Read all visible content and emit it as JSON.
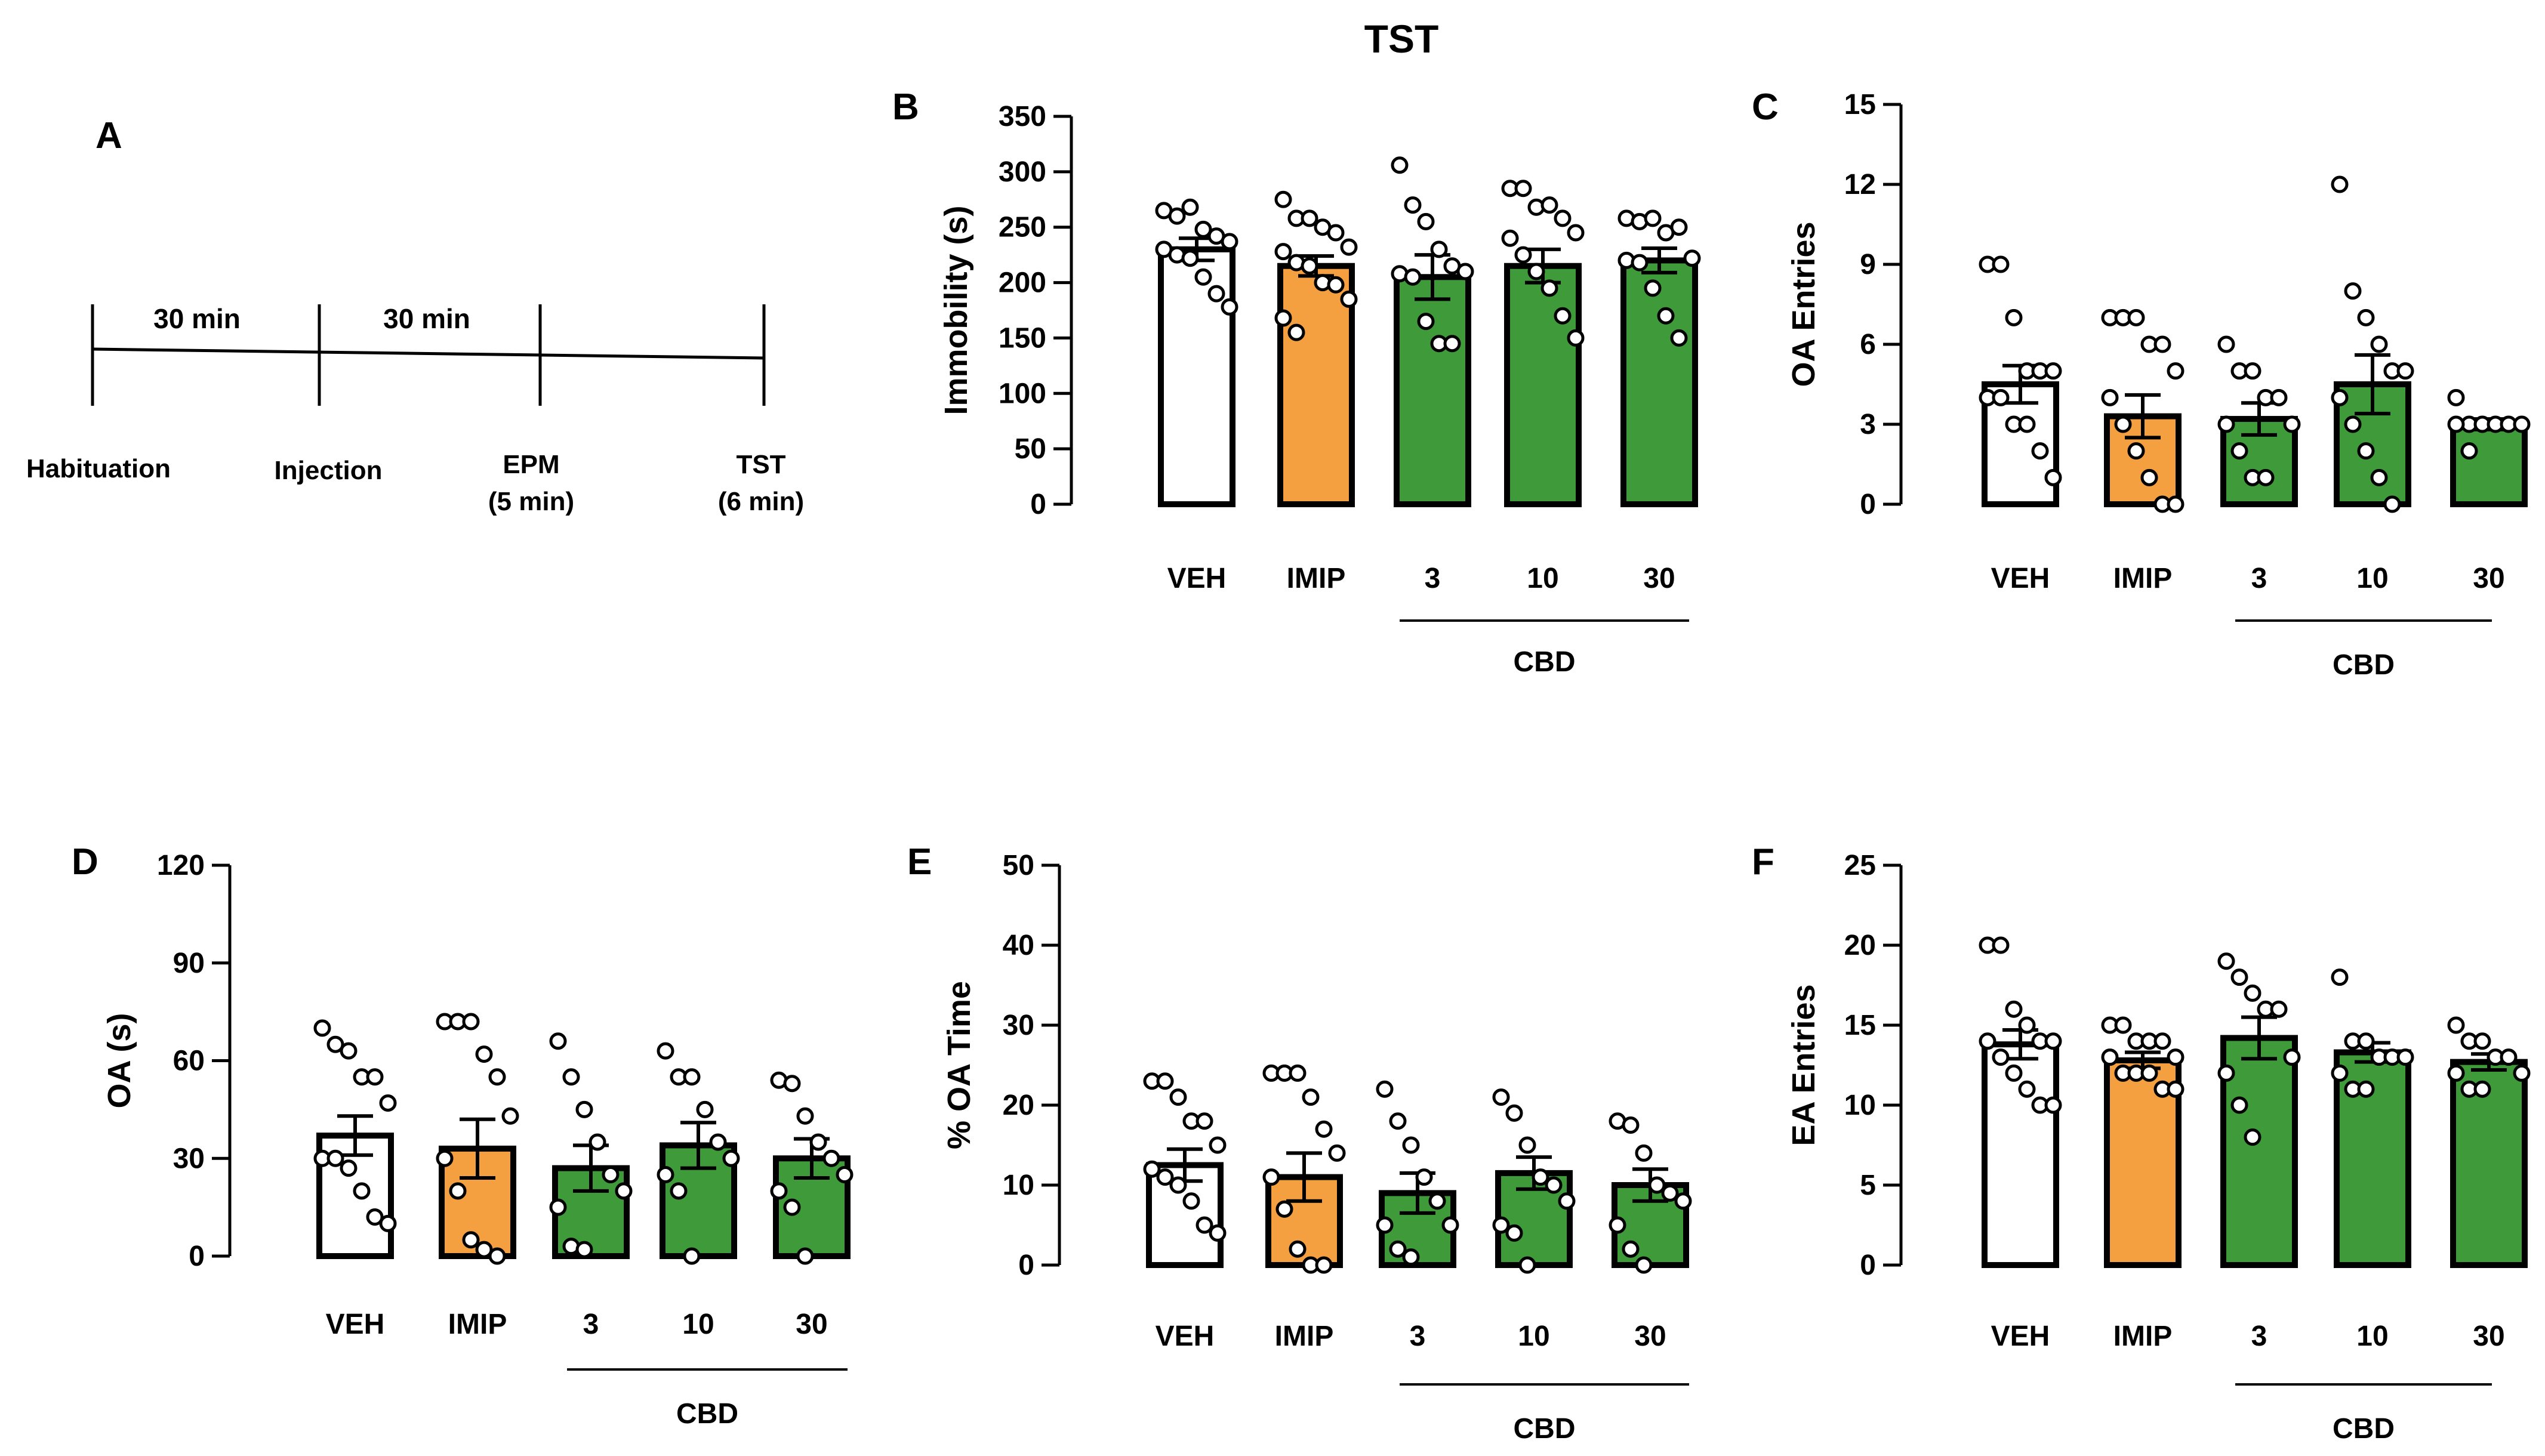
{
  "figure_title": "TST",
  "colors": {
    "veh": "#ffffff",
    "imip": "#f5a040",
    "cbd": "#3f9a3a",
    "stroke": "#000000"
  },
  "timeline": {
    "label": "A",
    "segments": [
      "30 min",
      "30 min"
    ],
    "events": [
      "Habituation",
      "Injection",
      "EPM",
      "TST"
    ],
    "event_sublabels": [
      "",
      "",
      "(5 min)",
      "(6 min)"
    ]
  },
  "chart_data": [
    {
      "panel": "B",
      "type": "bar",
      "ylabel": "Immobility (s)",
      "ylim": [
        0,
        350
      ],
      "yticks": [
        0,
        50,
        100,
        150,
        200,
        250,
        300,
        350
      ],
      "categories": [
        "VEH",
        "IMIP",
        "3",
        "10",
        "30"
      ],
      "group_label": "CBD",
      "values": [
        230,
        215,
        205,
        215,
        220
      ],
      "sem": [
        10,
        9,
        20,
        15,
        11
      ],
      "points": [
        [
          265,
          260,
          268,
          248,
          242,
          237,
          230,
          225,
          222,
          205,
          190,
          178
        ],
        [
          275,
          258,
          258,
          250,
          245,
          232,
          228,
          218,
          215,
          200,
          198,
          185,
          168,
          155
        ],
        [
          306,
          270,
          255,
          230,
          215,
          210,
          208,
          205,
          165,
          145,
          145
        ],
        [
          285,
          285,
          268,
          270,
          258,
          245,
          240,
          225,
          210,
          195,
          170,
          150
        ],
        [
          258,
          255,
          258,
          245,
          250,
          222,
          220,
          218,
          195,
          170,
          150
        ]
      ]
    },
    {
      "panel": "C",
      "type": "bar",
      "ylabel": "OA Entries",
      "ylim": [
        0,
        15
      ],
      "yticks": [
        0,
        3,
        6,
        9,
        12,
        15
      ],
      "categories": [
        "VEH",
        "IMIP",
        "3",
        "10",
        "30"
      ],
      "group_label": "CBD",
      "values": [
        4.5,
        3.3,
        3.2,
        4.5,
        3.0
      ],
      "sem": [
        0.7,
        0.8,
        0.6,
        1.1,
        0.2
      ],
      "points": [
        [
          9,
          9,
          7,
          5,
          5,
          5,
          4,
          4,
          3,
          3,
          2,
          1
        ],
        [
          7,
          7,
          7,
          6,
          6,
          5,
          4,
          3,
          2,
          1,
          0,
          0
        ],
        [
          6,
          5,
          5,
          4,
          4,
          3,
          3,
          2,
          1,
          1
        ],
        [
          12,
          8,
          7,
          6,
          5,
          5,
          4,
          3,
          2,
          1,
          0
        ],
        [
          4,
          3,
          3,
          3,
          3,
          3,
          3,
          2
        ]
      ]
    },
    {
      "panel": "D",
      "type": "bar",
      "ylabel": "OA (s)",
      "ylim": [
        0,
        120
      ],
      "yticks": [
        0,
        30,
        60,
        90,
        120
      ],
      "categories": [
        "VEH",
        "IMIP",
        "3",
        "10",
        "30"
      ],
      "group_label": "CBD",
      "values": [
        37,
        33,
        27,
        34,
        30
      ],
      "sem": [
        6,
        9,
        7,
        7,
        6
      ],
      "points": [
        [
          70,
          65,
          63,
          55,
          55,
          47,
          30,
          30,
          27,
          20,
          12,
          10
        ],
        [
          72,
          72,
          72,
          62,
          55,
          43,
          30,
          20,
          5,
          2,
          0
        ],
        [
          66,
          55,
          45,
          35,
          25,
          20,
          15,
          3,
          2
        ],
        [
          63,
          55,
          55,
          45,
          35,
          30,
          25,
          20,
          0
        ],
        [
          54,
          53,
          43,
          35,
          30,
          25,
          20,
          15,
          0
        ]
      ]
    },
    {
      "panel": "E",
      "type": "bar",
      "ylabel": "% OA Time",
      "ylim": [
        0,
        50
      ],
      "yticks": [
        0,
        10,
        20,
        30,
        40,
        50
      ],
      "categories": [
        "VEH",
        "IMIP",
        "3",
        "10",
        "30"
      ],
      "group_label": "CBD",
      "values": [
        12.5,
        11,
        9,
        11.5,
        10
      ],
      "sem": [
        2,
        3,
        2.5,
        2,
        2
      ],
      "points": [
        [
          23,
          23,
          21,
          18,
          18,
          15,
          12,
          11,
          10,
          8,
          5,
          4
        ],
        [
          24,
          24,
          24,
          21,
          17,
          14,
          11,
          7,
          2,
          0,
          0
        ],
        [
          22,
          18,
          15,
          11,
          8,
          5,
          5,
          2,
          1
        ],
        [
          21,
          19,
          15,
          11,
          10,
          8,
          5,
          4,
          0
        ],
        [
          18,
          17.5,
          14,
          10,
          9,
          8,
          5,
          2,
          0
        ]
      ]
    },
    {
      "panel": "F",
      "type": "bar",
      "ylabel": "EA Entries",
      "ylim": [
        0,
        25
      ],
      "yticks": [
        0,
        5,
        10,
        15,
        20,
        25
      ],
      "categories": [
        "VEH",
        "IMIP",
        "3",
        "10",
        "30"
      ],
      "group_label": "CBD",
      "values": [
        13.8,
        12.8,
        14.2,
        13.3,
        12.7
      ],
      "sem": [
        0.9,
        0.5,
        1.3,
        0.6,
        0.5
      ],
      "points": [
        [
          20,
          20,
          16,
          15,
          14,
          14,
          14,
          13,
          12,
          11,
          10,
          10
        ],
        [
          15,
          15,
          14,
          14,
          14,
          13,
          13,
          12,
          12,
          12,
          11,
          11
        ],
        [
          19,
          18,
          17,
          16,
          16,
          13,
          12,
          10,
          8
        ],
        [
          18,
          14,
          14,
          13,
          13,
          13,
          12,
          11,
          11
        ],
        [
          15,
          14,
          14,
          13,
          13,
          12,
          12,
          11,
          11
        ]
      ]
    }
  ]
}
